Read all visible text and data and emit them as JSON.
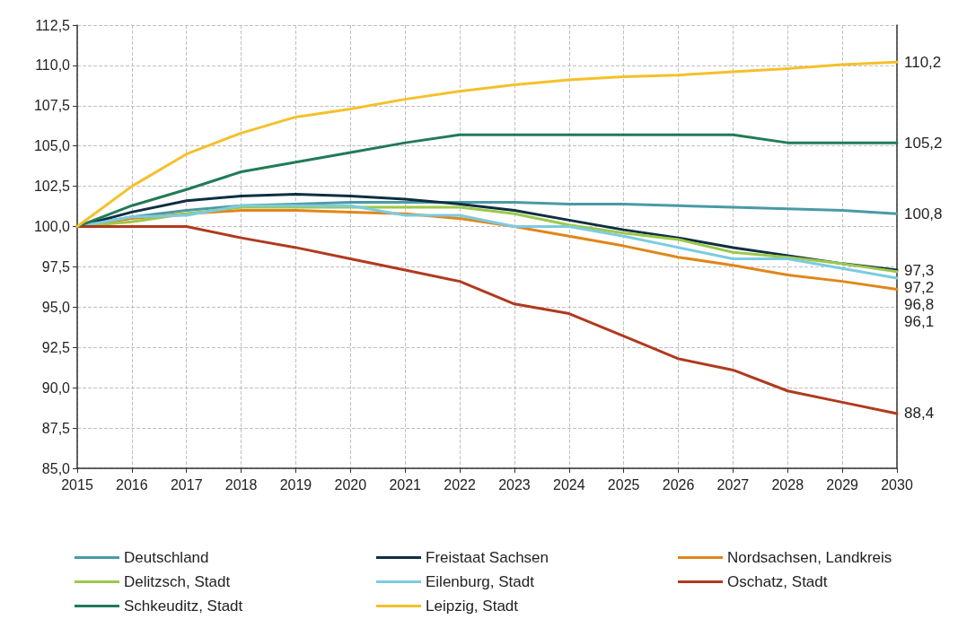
{
  "chart_data": {
    "type": "line",
    "categories": [
      "2015",
      "2016",
      "2017",
      "2018",
      "2019",
      "2020",
      "2021",
      "2022",
      "2023",
      "2024",
      "2025",
      "2026",
      "2027",
      "2028",
      "2029",
      "2030"
    ],
    "ylim": [
      85,
      112.5
    ],
    "yticks": [
      {
        "value": 85,
        "label": "85,0"
      },
      {
        "value": 87.5,
        "label": "87,5"
      },
      {
        "value": 90,
        "label": "90,0"
      },
      {
        "value": 92.5,
        "label": "92,5"
      },
      {
        "value": 95,
        "label": "95,0"
      },
      {
        "value": 97.5,
        "label": "97,5"
      },
      {
        "value": 100,
        "label": "100,0"
      },
      {
        "value": 102.5,
        "label": "102,5"
      },
      {
        "value": 105,
        "label": "105,0"
      },
      {
        "value": 107.5,
        "label": "107,5"
      },
      {
        "value": 110,
        "label": "110,0"
      },
      {
        "value": 112.5,
        "label": "112,5"
      }
    ],
    "grid": true,
    "legend": "bottom",
    "marker": "none",
    "line_style": "solid",
    "series": [
      {
        "name": "Deutschland",
        "color": "#4a9aa6",
        "values": [
          100,
          100.6,
          101.0,
          101.3,
          101.4,
          101.5,
          101.5,
          101.5,
          101.5,
          101.4,
          101.4,
          101.3,
          101.2,
          101.1,
          101.0,
          100.8
        ],
        "value_labels": [
          null,
          null,
          null,
          null,
          null,
          null,
          null,
          null,
          null,
          null,
          null,
          null,
          null,
          null,
          null,
          "100,8"
        ]
      },
      {
        "name": "Freistaat Sachsen",
        "color": "#0e2f40",
        "values": [
          100,
          100.9,
          101.6,
          101.9,
          102.0,
          101.9,
          101.7,
          101.4,
          101.0,
          100.4,
          99.8,
          99.3,
          98.7,
          98.2,
          97.7,
          97.3
        ],
        "value_labels": [
          null,
          null,
          null,
          null,
          null,
          null,
          null,
          null,
          null,
          null,
          null,
          null,
          null,
          null,
          null,
          "97,3"
        ]
      },
      {
        "name": "Nordsachsen, Landkreis",
        "color": "#e0861a",
        "values": [
          100,
          100.5,
          100.8,
          101.0,
          101.0,
          100.9,
          100.8,
          100.5,
          100.0,
          99.4,
          98.8,
          98.1,
          97.6,
          97.0,
          96.6,
          96.1
        ],
        "value_labels": [
          null,
          null,
          null,
          null,
          null,
          null,
          null,
          null,
          null,
          null,
          null,
          null,
          null,
          null,
          null,
          "96,1"
        ]
      },
      {
        "name": "Delitzsch, Stadt",
        "color": "#9dc84a",
        "values": [
          100,
          100.3,
          100.8,
          101.2,
          101.2,
          101.2,
          101.2,
          101.2,
          100.8,
          100.1,
          99.6,
          99.2,
          98.4,
          98.1,
          97.7,
          97.2
        ],
        "value_labels": [
          null,
          null,
          null,
          null,
          null,
          null,
          null,
          null,
          null,
          null,
          null,
          null,
          null,
          null,
          null,
          "97,2"
        ]
      },
      {
        "name": "Eilenburg, Stadt",
        "color": "#7ccbe0",
        "values": [
          100,
          100.6,
          100.7,
          101.3,
          101.3,
          101.3,
          100.7,
          100.7,
          100.0,
          100.0,
          99.4,
          98.7,
          98.0,
          98.0,
          97.4,
          96.8
        ],
        "value_labels": [
          null,
          null,
          null,
          null,
          null,
          null,
          null,
          null,
          null,
          null,
          null,
          null,
          null,
          null,
          null,
          "96,8"
        ]
      },
      {
        "name": "Oschatz, Stadt",
        "color": "#b03a1e",
        "values": [
          100,
          100,
          100,
          99.3,
          98.7,
          98.0,
          97.3,
          96.6,
          95.2,
          94.6,
          93.2,
          91.8,
          91.1,
          89.8,
          89.1,
          88.4
        ],
        "value_labels": [
          null,
          null,
          null,
          null,
          null,
          null,
          null,
          null,
          null,
          null,
          null,
          null,
          null,
          null,
          null,
          "88,4"
        ]
      },
      {
        "name": "Schkeuditz, Stadt",
        "color": "#217b56",
        "values": [
          100,
          101.3,
          102.3,
          103.4,
          104.0,
          104.6,
          105.2,
          105.7,
          105.7,
          105.7,
          105.7,
          105.7,
          105.7,
          105.2,
          105.2,
          105.2
        ],
        "value_labels": [
          null,
          null,
          null,
          null,
          null,
          null,
          null,
          null,
          null,
          null,
          null,
          null,
          null,
          null,
          null,
          "105,2"
        ]
      },
      {
        "name": "Leipzig, Stadt",
        "color": "#f5c02a",
        "values": [
          100,
          102.5,
          104.5,
          105.8,
          106.8,
          107.3,
          107.9,
          108.4,
          108.8,
          109.1,
          109.3,
          109.4,
          109.6,
          109.8,
          110.05,
          110.2
        ],
        "value_labels": [
          null,
          null,
          null,
          null,
          null,
          null,
          null,
          null,
          null,
          null,
          null,
          null,
          null,
          null,
          null,
          "110,2"
        ]
      }
    ]
  }
}
